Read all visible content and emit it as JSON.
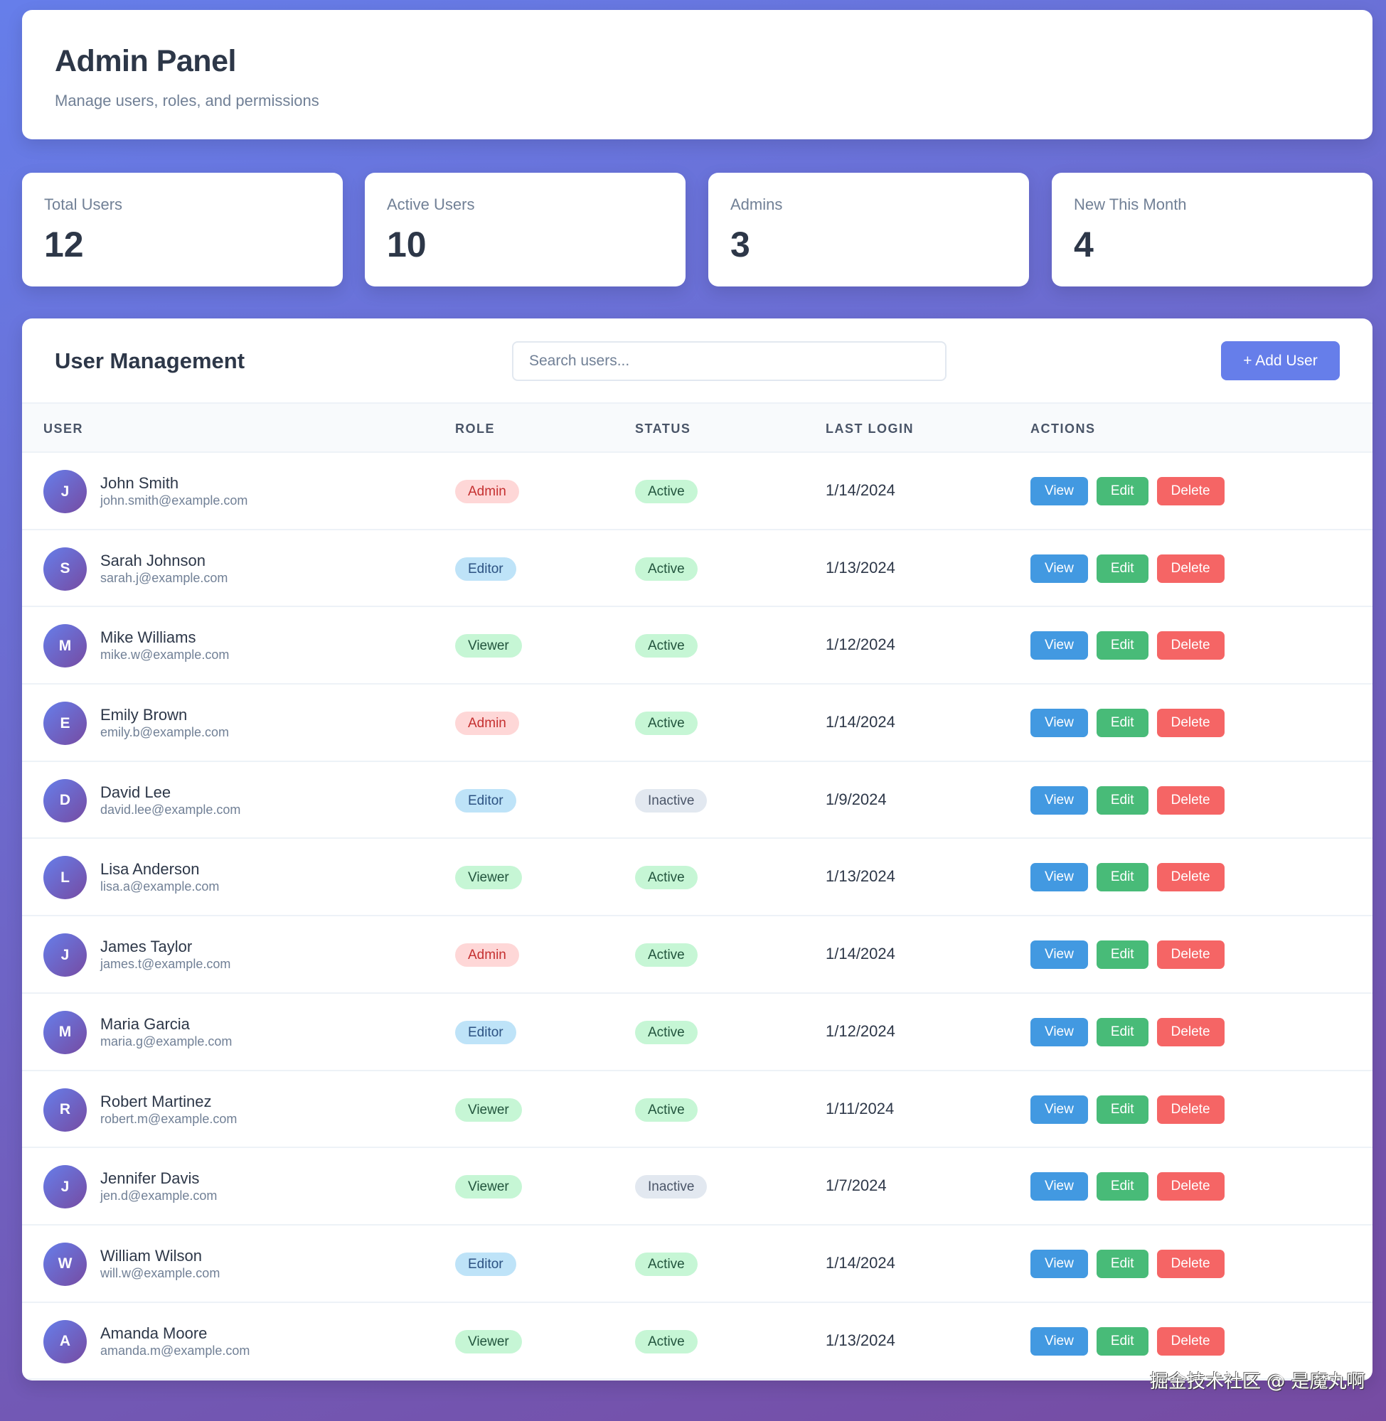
{
  "header": {
    "title": "Admin Panel",
    "subtitle": "Manage users, roles, and permissions"
  },
  "stats": [
    {
      "label": "Total Users",
      "value": "12"
    },
    {
      "label": "Active Users",
      "value": "10"
    },
    {
      "label": "Admins",
      "value": "3"
    },
    {
      "label": "New This Month",
      "value": "4"
    }
  ],
  "management": {
    "title": "User Management",
    "search_placeholder": "Search users...",
    "search_value": "",
    "add_label": "+ Add User"
  },
  "columns": [
    "USER",
    "ROLE",
    "STATUS",
    "LAST LOGIN",
    "ACTIONS"
  ],
  "actions": {
    "view": "View",
    "edit": "Edit",
    "delete": "Delete"
  },
  "users": [
    {
      "initial": "J",
      "name": "John Smith",
      "email": "john.smith@example.com",
      "role": "Admin",
      "status": "Active",
      "last_login": "1/14/2024"
    },
    {
      "initial": "S",
      "name": "Sarah Johnson",
      "email": "sarah.j@example.com",
      "role": "Editor",
      "status": "Active",
      "last_login": "1/13/2024"
    },
    {
      "initial": "M",
      "name": "Mike Williams",
      "email": "mike.w@example.com",
      "role": "Viewer",
      "status": "Active",
      "last_login": "1/12/2024"
    },
    {
      "initial": "E",
      "name": "Emily Brown",
      "email": "emily.b@example.com",
      "role": "Admin",
      "status": "Active",
      "last_login": "1/14/2024"
    },
    {
      "initial": "D",
      "name": "David Lee",
      "email": "david.lee@example.com",
      "role": "Editor",
      "status": "Inactive",
      "last_login": "1/9/2024"
    },
    {
      "initial": "L",
      "name": "Lisa Anderson",
      "email": "lisa.a@example.com",
      "role": "Viewer",
      "status": "Active",
      "last_login": "1/13/2024"
    },
    {
      "initial": "J",
      "name": "James Taylor",
      "email": "james.t@example.com",
      "role": "Admin",
      "status": "Active",
      "last_login": "1/14/2024"
    },
    {
      "initial": "M",
      "name": "Maria Garcia",
      "email": "maria.g@example.com",
      "role": "Editor",
      "status": "Active",
      "last_login": "1/12/2024"
    },
    {
      "initial": "R",
      "name": "Robert Martinez",
      "email": "robert.m@example.com",
      "role": "Viewer",
      "status": "Active",
      "last_login": "1/11/2024"
    },
    {
      "initial": "J",
      "name": "Jennifer Davis",
      "email": "jen.d@example.com",
      "role": "Viewer",
      "status": "Inactive",
      "last_login": "1/7/2024"
    },
    {
      "initial": "W",
      "name": "William Wilson",
      "email": "will.w@example.com",
      "role": "Editor",
      "status": "Active",
      "last_login": "1/14/2024"
    },
    {
      "initial": "A",
      "name": "Amanda Moore",
      "email": "amanda.m@example.com",
      "role": "Viewer",
      "status": "Active",
      "last_login": "1/13/2024"
    }
  ],
  "colors": {
    "accent": "#667eea",
    "gradient_end": "#764ba2",
    "view": "#4299e1",
    "edit": "#48bb78",
    "delete": "#f56565"
  },
  "watermark": "掘金技术社区 @ 是魔丸啊"
}
